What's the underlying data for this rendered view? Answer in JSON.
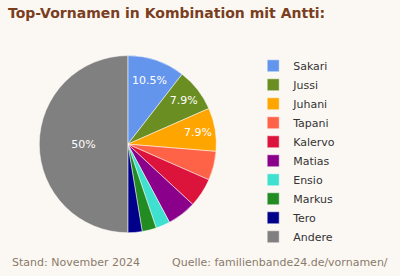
{
  "chart_data": {
    "type": "pie",
    "title": "Top-Vornamen in Kombination mit Antti:",
    "categories": [
      "Sakari",
      "Jussi",
      "Juhani",
      "Tapani",
      "Kalervo",
      "Matias",
      "Ensio",
      "Markus",
      "Tero",
      "Andere"
    ],
    "values": [
      10.5,
      7.9,
      7.9,
      5.3,
      5.3,
      5.3,
      2.6,
      2.6,
      2.6,
      50
    ],
    "value_labels": [
      "10.5%",
      "7.9%",
      "7.9%",
      null,
      null,
      null,
      null,
      null,
      null,
      "50%"
    ],
    "data_labels": true,
    "colors": [
      "#6495ed",
      "#6b8e23",
      "#ffa500",
      "#ff6347",
      "#dc143c",
      "#8b008b",
      "#40e0d0",
      "#228b22",
      "#00008b",
      "#808080"
    ],
    "legend": "right",
    "annotations": [
      "Stand: November 2024",
      "Quelle: familienbande24.de/vornamen/"
    ]
  }
}
